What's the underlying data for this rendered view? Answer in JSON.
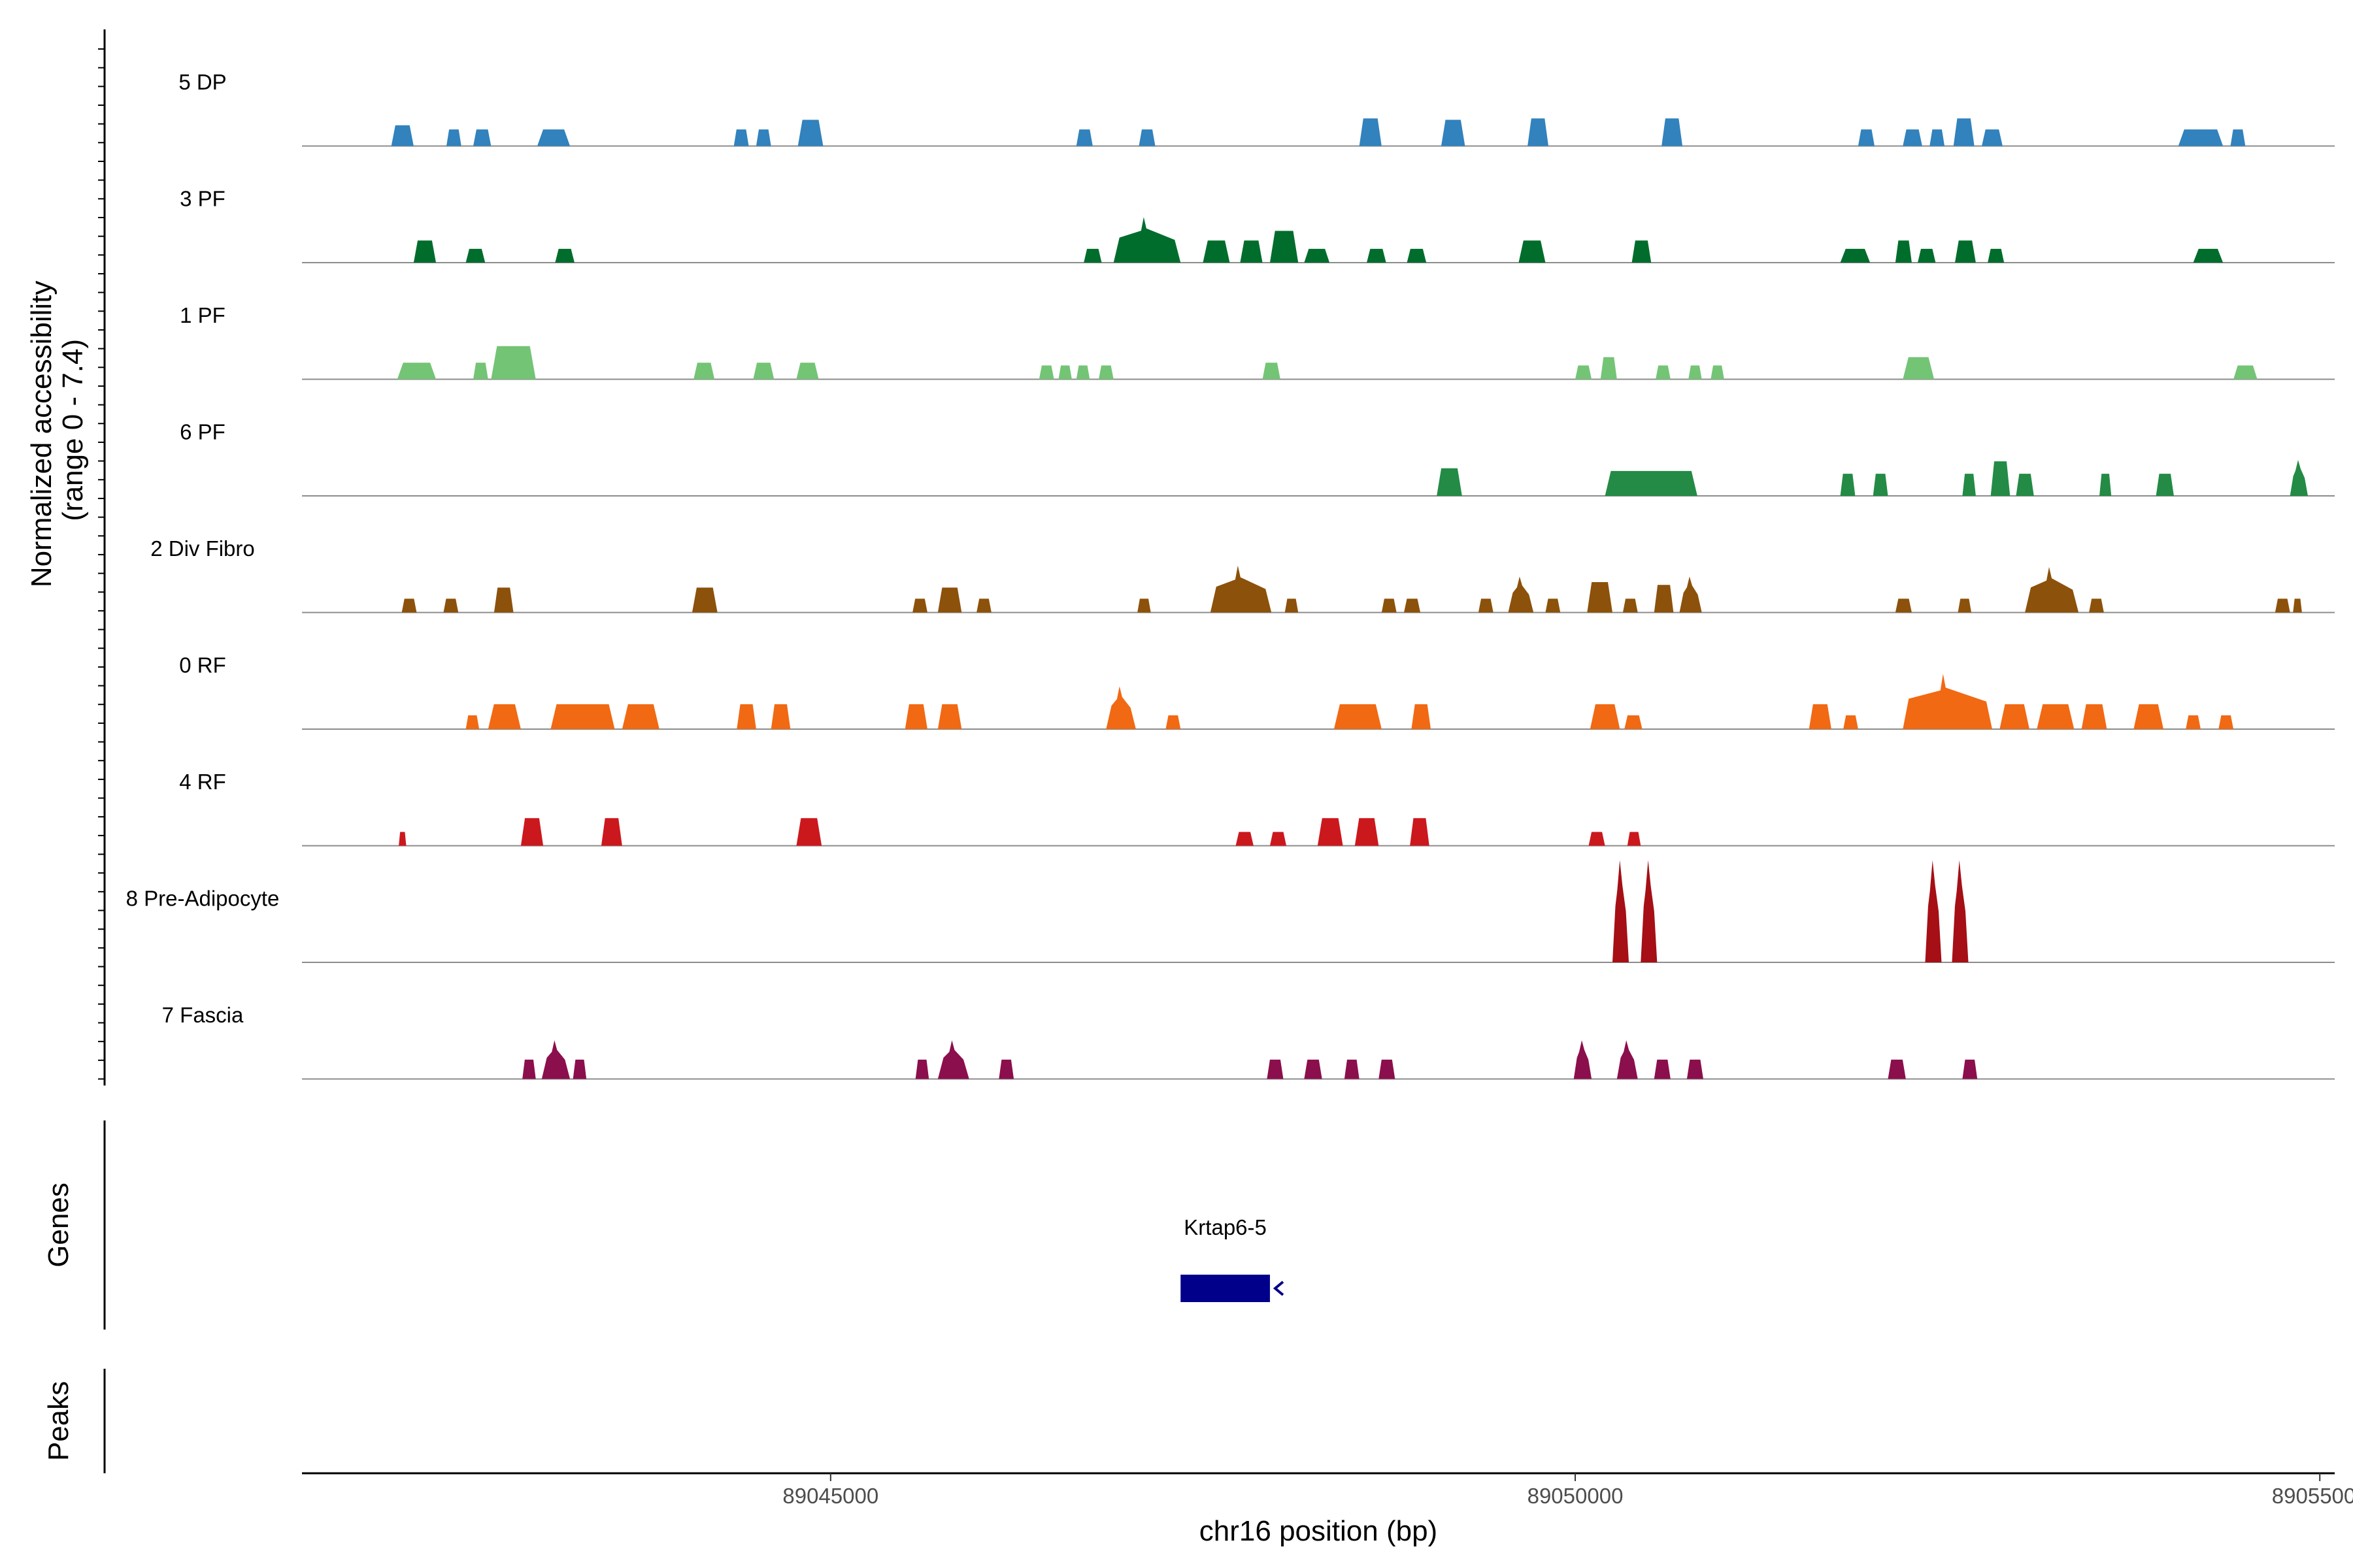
{
  "chart_data": {
    "type": "area",
    "title": "",
    "xlabel": "chr16 position (bp)",
    "ylabel_line1": "Normalized accessibility",
    "ylabel_line2": "(range 0 - 7.4)",
    "y_range": [
      0,
      7.4
    ],
    "xlim": [
      89041450,
      89055100
    ],
    "x_ticks": [
      89045000,
      89050000,
      89055000
    ],
    "x_tick_labels": [
      "89045000",
      "89050000",
      "89055000"
    ],
    "series": [
      {
        "name": "5 DP",
        "color": "#3182BD",
        "peaks": [
          [
            89042050,
            89042200,
            1.5
          ],
          [
            89042420,
            89042520,
            1.2
          ],
          [
            89042600,
            89042720,
            1.2
          ],
          [
            89043030,
            89043250,
            1.2
          ],
          [
            89044350,
            89044450,
            1.2
          ],
          [
            89044500,
            89044600,
            1.2
          ],
          [
            89044780,
            89044950,
            1.9
          ],
          [
            89046650,
            89046760,
            1.2
          ],
          [
            89047070,
            89047180,
            1.2
          ],
          [
            89048550,
            89048700,
            2.0
          ],
          [
            89049100,
            89049260,
            1.9
          ],
          [
            89049680,
            89049820,
            2.0
          ],
          [
            89050580,
            89050720,
            2.0
          ],
          [
            89051900,
            89052010,
            1.2
          ],
          [
            89052200,
            89052330,
            1.2
          ],
          [
            89052380,
            89052480,
            1.2
          ],
          [
            89052540,
            89052680,
            2.0
          ],
          [
            89052730,
            89052870,
            1.2
          ],
          [
            89054050,
            89054350,
            1.2
          ],
          [
            89054400,
            89054500,
            1.2
          ]
        ]
      },
      {
        "name": "3 PF",
        "color": "#006D2C",
        "peaks": [
          [
            89042200,
            89042350,
            1.6
          ],
          [
            89042550,
            89042680,
            1.0
          ],
          [
            89043150,
            89043280,
            1.0
          ],
          [
            89046700,
            89046820,
            1.0
          ],
          [
            89046900,
            89047350,
            3.3
          ],
          [
            89047500,
            89047680,
            1.6
          ],
          [
            89047750,
            89047900,
            1.6
          ],
          [
            89047950,
            89048140,
            2.3
          ],
          [
            89048180,
            89048350,
            1.0
          ],
          [
            89048600,
            89048730,
            1.0
          ],
          [
            89048870,
            89049000,
            1.0
          ],
          [
            89049620,
            89049800,
            1.6
          ],
          [
            89050380,
            89050510,
            1.6
          ],
          [
            89051780,
            89051980,
            1.0
          ],
          [
            89052150,
            89052260,
            1.6
          ],
          [
            89052300,
            89052420,
            1.0
          ],
          [
            89052550,
            89052690,
            1.6
          ],
          [
            89052770,
            89052880,
            1.0
          ],
          [
            89054150,
            89054350,
            1.0
          ]
        ]
      },
      {
        "name": "1 PF",
        "color": "#74C476",
        "peaks": [
          [
            89042090,
            89042350,
            1.2
          ],
          [
            89042600,
            89042700,
            1.2
          ],
          [
            89042720,
            89043020,
            2.4
          ],
          [
            89044080,
            89044220,
            1.2
          ],
          [
            89044480,
            89044620,
            1.2
          ],
          [
            89044770,
            89044920,
            1.2
          ],
          [
            89046400,
            89046500,
            1.0
          ],
          [
            89046530,
            89046620,
            1.0
          ],
          [
            89046650,
            89046740,
            1.0
          ],
          [
            89046800,
            89046900,
            1.0
          ],
          [
            89047900,
            89048020,
            1.2
          ],
          [
            89050000,
            89050110,
            1.0
          ],
          [
            89050170,
            89050280,
            1.6
          ],
          [
            89050540,
            89050640,
            1.0
          ],
          [
            89050760,
            89050850,
            1.0
          ],
          [
            89050910,
            89051000,
            1.0
          ],
          [
            89052200,
            89052410,
            1.6
          ],
          [
            89054420,
            89054580,
            1.0
          ]
        ]
      },
      {
        "name": "6 PF",
        "color": "#238B45",
        "peaks": [
          [
            89049070,
            89049240,
            2.0
          ],
          [
            89050200,
            89050820,
            1.8
          ],
          [
            89051780,
            89051880,
            1.6
          ],
          [
            89052000,
            89052100,
            1.6
          ],
          [
            89052600,
            89052690,
            1.6
          ],
          [
            89052790,
            89052920,
            2.5
          ],
          [
            89052960,
            89053080,
            1.6
          ],
          [
            89053520,
            89053600,
            1.6
          ],
          [
            89053900,
            89054020,
            1.6
          ],
          [
            89054800,
            89054920,
            2.6
          ]
        ]
      },
      {
        "name": "2 Div Fibro",
        "color": "#8C510A",
        "peaks": [
          [
            89042120,
            89042220,
            1.0
          ],
          [
            89042400,
            89042500,
            1.0
          ],
          [
            89042740,
            89042870,
            1.8
          ],
          [
            89044070,
            89044240,
            1.8
          ],
          [
            89045550,
            89045650,
            1.0
          ],
          [
            89045720,
            89045880,
            1.8
          ],
          [
            89045980,
            89046080,
            1.0
          ],
          [
            89047060,
            89047150,
            1.0
          ],
          [
            89047550,
            89047960,
            3.4
          ],
          [
            89048050,
            89048140,
            1.0
          ],
          [
            89048700,
            89048800,
            1.0
          ],
          [
            89048850,
            89048960,
            1.0
          ],
          [
            89049350,
            89049450,
            1.0
          ],
          [
            89049550,
            89049720,
            2.6
          ],
          [
            89049800,
            89049900,
            1.0
          ],
          [
            89050080,
            89050250,
            2.2
          ],
          [
            89050320,
            89050420,
            1.0
          ],
          [
            89050530,
            89050660,
            2.0
          ],
          [
            89050700,
            89050850,
            2.6
          ],
          [
            89052150,
            89052260,
            1.0
          ],
          [
            89052570,
            89052660,
            1.0
          ],
          [
            89053020,
            89053380,
            3.3
          ],
          [
            89053450,
            89053550,
            1.0
          ],
          [
            89054700,
            89054800,
            1.0
          ],
          [
            89054820,
            89054880,
            1.0
          ]
        ]
      },
      {
        "name": "0 RF",
        "color": "#F16913",
        "peaks": [
          [
            89042550,
            89042640,
            1.0
          ],
          [
            89042700,
            89042920,
            1.8
          ],
          [
            89043120,
            89043550,
            1.8
          ],
          [
            89043600,
            89043850,
            1.8
          ],
          [
            89044370,
            89044500,
            1.8
          ],
          [
            89044600,
            89044730,
            1.8
          ],
          [
            89045500,
            89045650,
            1.8
          ],
          [
            89045720,
            89045880,
            1.8
          ],
          [
            89046850,
            89047050,
            3.1
          ],
          [
            89047250,
            89047350,
            1.0
          ],
          [
            89048380,
            89048700,
            1.8
          ],
          [
            89048900,
            89049030,
            1.8
          ],
          [
            89050100,
            89050300,
            1.8
          ],
          [
            89050330,
            89050450,
            1.0
          ],
          [
            89051570,
            89051720,
            1.8
          ],
          [
            89051800,
            89051900,
            1.0
          ],
          [
            89052200,
            89052800,
            4.0
          ],
          [
            89052850,
            89053050,
            1.8
          ],
          [
            89053100,
            89053350,
            1.8
          ],
          [
            89053400,
            89053570,
            1.8
          ],
          [
            89053750,
            89053950,
            1.8
          ],
          [
            89054100,
            89054200,
            1.0
          ],
          [
            89054320,
            89054420,
            1.0
          ]
        ]
      },
      {
        "name": "4 RF",
        "color": "#CB181D",
        "peaks": [
          [
            89042100,
            89042150,
            1.0
          ],
          [
            89042920,
            89043070,
            2.0
          ],
          [
            89043460,
            89043600,
            2.0
          ],
          [
            89044770,
            89044940,
            2.0
          ],
          [
            89047720,
            89047840,
            1.0
          ],
          [
            89047950,
            89048060,
            1.0
          ],
          [
            89048270,
            89048440,
            2.0
          ],
          [
            89048520,
            89048680,
            2.0
          ],
          [
            89048890,
            89049020,
            2.0
          ],
          [
            89050090,
            89050200,
            1.0
          ],
          [
            89050350,
            89050440,
            1.0
          ]
        ]
      },
      {
        "name": "8 Pre-Adipocyte",
        "color": "#A50F15",
        "peaks": [
          [
            89050250,
            89050360,
            7.4
          ],
          [
            89050440,
            89050550,
            7.4
          ],
          [
            89052350,
            89052460,
            7.4
          ],
          [
            89052530,
            89052640,
            7.4
          ]
        ]
      },
      {
        "name": "7 Fascia",
        "color": "#8B0F4C",
        "peaks": [
          [
            89042930,
            89043020,
            1.4
          ],
          [
            89043060,
            89043250,
            2.8
          ],
          [
            89043270,
            89043360,
            1.4
          ],
          [
            89045570,
            89045660,
            1.4
          ],
          [
            89045720,
            89045930,
            2.8
          ],
          [
            89046130,
            89046230,
            1.4
          ],
          [
            89047930,
            89048040,
            1.4
          ],
          [
            89048180,
            89048300,
            1.4
          ],
          [
            89048450,
            89048550,
            1.4
          ],
          [
            89048680,
            89048790,
            1.4
          ],
          [
            89049990,
            89050110,
            2.8
          ],
          [
            89050280,
            89050420,
            2.8
          ],
          [
            89050530,
            89050640,
            1.4
          ],
          [
            89050750,
            89050860,
            1.4
          ],
          [
            89052100,
            89052220,
            1.4
          ],
          [
            89052600,
            89052700,
            1.4
          ]
        ]
      }
    ],
    "genes": [
      {
        "name": "Krtap6-5",
        "start": 89047350,
        "end": 89047950,
        "strand": "-",
        "color": "#00008B"
      }
    ],
    "side_panels": [
      "Genes",
      "Peaks"
    ]
  }
}
